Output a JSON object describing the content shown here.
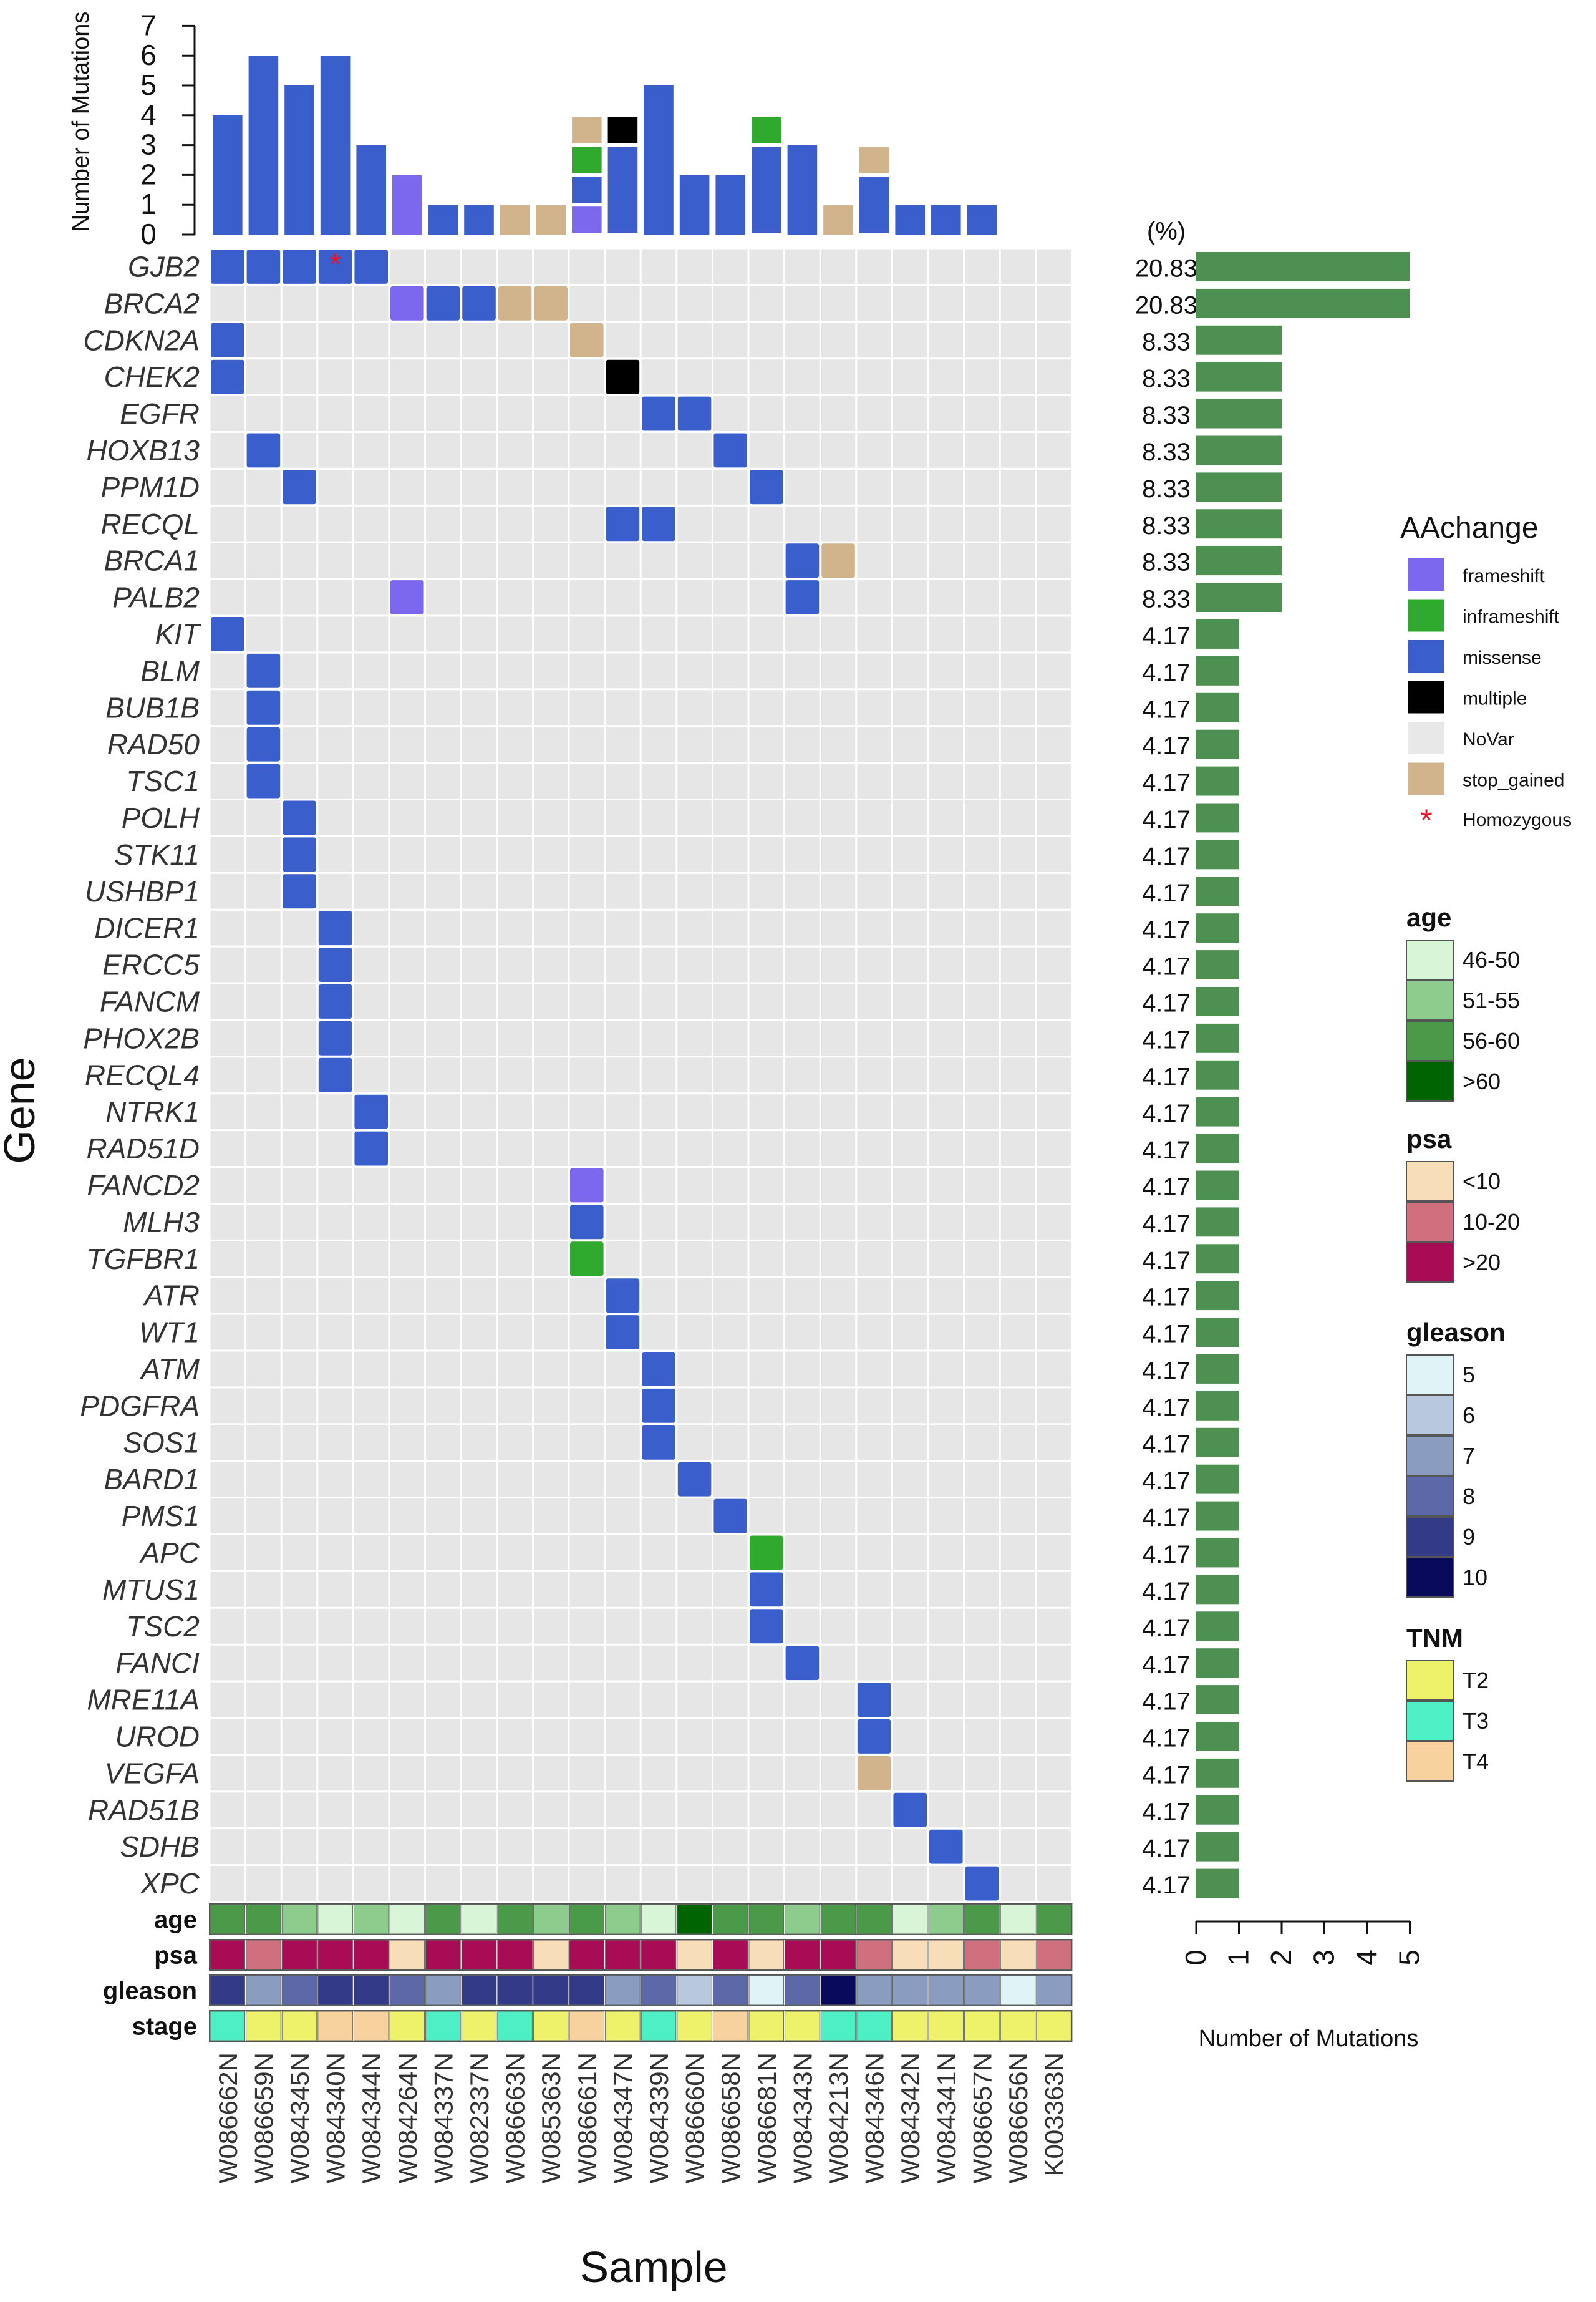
{
  "chart_data": {
    "type": "heatmap",
    "subtype": "oncoprint",
    "title": "",
    "xlabel": "Sample",
    "ylabel": "Gene",
    "top_barplot": {
      "ylabel": "Number of Mutations",
      "ylim": [
        0,
        7
      ],
      "ticks": [
        0,
        1,
        2,
        3,
        4,
        5,
        6,
        7
      ]
    },
    "right_barplot": {
      "xlabel": "Number of Mutations",
      "xlim": [
        0,
        5
      ],
      "ticks": [
        0,
        1,
        2,
        3,
        4,
        5
      ],
      "percent_header": "(%)"
    },
    "samples": [
      "W086662N",
      "W086659N",
      "W084345N",
      "W084340N",
      "W084344N",
      "W084264N",
      "W084337N",
      "W082337N",
      "W086663N",
      "W085363N",
      "W086661N",
      "W084347N",
      "W084339N",
      "W086660N",
      "W086658N",
      "W086681N",
      "W084343N",
      "W084213N",
      "W084346N",
      "W084342N",
      "W084341N",
      "W086657N",
      "W086656N",
      "K003363N"
    ],
    "sample_mutation_totals": [
      4,
      6,
      5,
      6,
      3,
      2,
      1,
      1,
      1,
      1,
      4,
      4,
      5,
      2,
      2,
      4,
      3,
      1,
      3,
      1,
      1,
      1,
      0,
      0
    ],
    "genes": [
      {
        "name": "GJB2",
        "pct": "20.83",
        "count": 5
      },
      {
        "name": "BRCA2",
        "pct": "20.83",
        "count": 5
      },
      {
        "name": "CDKN2A",
        "pct": "8.33",
        "count": 2
      },
      {
        "name": "CHEK2",
        "pct": "8.33",
        "count": 2
      },
      {
        "name": "EGFR",
        "pct": "8.33",
        "count": 2
      },
      {
        "name": "HOXB13",
        "pct": "8.33",
        "count": 2
      },
      {
        "name": "PPM1D",
        "pct": "8.33",
        "count": 2
      },
      {
        "name": "RECQL",
        "pct": "8.33",
        "count": 2
      },
      {
        "name": "BRCA1",
        "pct": "8.33",
        "count": 2
      },
      {
        "name": "PALB2",
        "pct": "8.33",
        "count": 2
      },
      {
        "name": "KIT",
        "pct": "4.17",
        "count": 1
      },
      {
        "name": "BLM",
        "pct": "4.17",
        "count": 1
      },
      {
        "name": "BUB1B",
        "pct": "4.17",
        "count": 1
      },
      {
        "name": "RAD50",
        "pct": "4.17",
        "count": 1
      },
      {
        "name": "TSC1",
        "pct": "4.17",
        "count": 1
      },
      {
        "name": "POLH",
        "pct": "4.17",
        "count": 1
      },
      {
        "name": "STK11",
        "pct": "4.17",
        "count": 1
      },
      {
        "name": "USHBP1",
        "pct": "4.17",
        "count": 1
      },
      {
        "name": "DICER1",
        "pct": "4.17",
        "count": 1
      },
      {
        "name": "ERCC5",
        "pct": "4.17",
        "count": 1
      },
      {
        "name": "FANCM",
        "pct": "4.17",
        "count": 1
      },
      {
        "name": "PHOX2B",
        "pct": "4.17",
        "count": 1
      },
      {
        "name": "RECQL4",
        "pct": "4.17",
        "count": 1
      },
      {
        "name": "NTRK1",
        "pct": "4.17",
        "count": 1
      },
      {
        "name": "RAD51D",
        "pct": "4.17",
        "count": 1
      },
      {
        "name": "FANCD2",
        "pct": "4.17",
        "count": 1
      },
      {
        "name": "MLH3",
        "pct": "4.17",
        "count": 1
      },
      {
        "name": "TGFBR1",
        "pct": "4.17",
        "count": 1
      },
      {
        "name": "ATR",
        "pct": "4.17",
        "count": 1
      },
      {
        "name": "WT1",
        "pct": "4.17",
        "count": 1
      },
      {
        "name": "ATM",
        "pct": "4.17",
        "count": 1
      },
      {
        "name": "PDGFRA",
        "pct": "4.17",
        "count": 1
      },
      {
        "name": "SOS1",
        "pct": "4.17",
        "count": 1
      },
      {
        "name": "BARD1",
        "pct": "4.17",
        "count": 1
      },
      {
        "name": "PMS1",
        "pct": "4.17",
        "count": 1
      },
      {
        "name": "APC",
        "pct": "4.17",
        "count": 1
      },
      {
        "name": "MTUS1",
        "pct": "4.17",
        "count": 1
      },
      {
        "name": "TSC2",
        "pct": "4.17",
        "count": 1
      },
      {
        "name": "FANCI",
        "pct": "4.17",
        "count": 1
      },
      {
        "name": "MRE11A",
        "pct": "4.17",
        "count": 1
      },
      {
        "name": "UROD",
        "pct": "4.17",
        "count": 1
      },
      {
        "name": "VEGFA",
        "pct": "4.17",
        "count": 1
      },
      {
        "name": "RAD51B",
        "pct": "4.17",
        "count": 1
      },
      {
        "name": "SDHB",
        "pct": "4.17",
        "count": 1
      },
      {
        "name": "XPC",
        "pct": "4.17",
        "count": 1
      }
    ],
    "mutations": [
      {
        "gene": "GJB2",
        "sample": "W086662N",
        "type": "missense"
      },
      {
        "gene": "GJB2",
        "sample": "W086659N",
        "type": "missense"
      },
      {
        "gene": "GJB2",
        "sample": "W084345N",
        "type": "missense"
      },
      {
        "gene": "GJB2",
        "sample": "W084340N",
        "type": "missense",
        "homozygous": true
      },
      {
        "gene": "GJB2",
        "sample": "W084344N",
        "type": "missense"
      },
      {
        "gene": "BRCA2",
        "sample": "W084264N",
        "type": "frameshift"
      },
      {
        "gene": "BRCA2",
        "sample": "W084337N",
        "type": "missense"
      },
      {
        "gene": "BRCA2",
        "sample": "W082337N",
        "type": "missense"
      },
      {
        "gene": "BRCA2",
        "sample": "W086663N",
        "type": "stop_gained"
      },
      {
        "gene": "BRCA2",
        "sample": "W085363N",
        "type": "stop_gained"
      },
      {
        "gene": "CDKN2A",
        "sample": "W086662N",
        "type": "missense"
      },
      {
        "gene": "CDKN2A",
        "sample": "W086661N",
        "type": "stop_gained"
      },
      {
        "gene": "CHEK2",
        "sample": "W086662N",
        "type": "missense"
      },
      {
        "gene": "CHEK2",
        "sample": "W084347N",
        "type": "multiple"
      },
      {
        "gene": "EGFR",
        "sample": "W084339N",
        "type": "missense"
      },
      {
        "gene": "EGFR",
        "sample": "W086660N",
        "type": "missense"
      },
      {
        "gene": "HOXB13",
        "sample": "W086659N",
        "type": "missense"
      },
      {
        "gene": "HOXB13",
        "sample": "W086658N",
        "type": "missense"
      },
      {
        "gene": "PPM1D",
        "sample": "W084345N",
        "type": "missense"
      },
      {
        "gene": "PPM1D",
        "sample": "W086681N",
        "type": "missense"
      },
      {
        "gene": "RECQL",
        "sample": "W084347N",
        "type": "missense"
      },
      {
        "gene": "RECQL",
        "sample": "W084339N",
        "type": "missense"
      },
      {
        "gene": "BRCA1",
        "sample": "W084343N",
        "type": "missense"
      },
      {
        "gene": "BRCA1",
        "sample": "W084213N",
        "type": "stop_gained"
      },
      {
        "gene": "PALB2",
        "sample": "W084264N",
        "type": "frameshift"
      },
      {
        "gene": "PALB2",
        "sample": "W084343N",
        "type": "missense"
      },
      {
        "gene": "KIT",
        "sample": "W086662N",
        "type": "missense"
      },
      {
        "gene": "BLM",
        "sample": "W086659N",
        "type": "missense"
      },
      {
        "gene": "BUB1B",
        "sample": "W086659N",
        "type": "missense"
      },
      {
        "gene": "RAD50",
        "sample": "W086659N",
        "type": "missense"
      },
      {
        "gene": "TSC1",
        "sample": "W086659N",
        "type": "missense"
      },
      {
        "gene": "POLH",
        "sample": "W084345N",
        "type": "missense"
      },
      {
        "gene": "STK11",
        "sample": "W084345N",
        "type": "missense"
      },
      {
        "gene": "USHBP1",
        "sample": "W084345N",
        "type": "missense"
      },
      {
        "gene": "DICER1",
        "sample": "W084340N",
        "type": "missense"
      },
      {
        "gene": "ERCC5",
        "sample": "W084340N",
        "type": "missense"
      },
      {
        "gene": "FANCM",
        "sample": "W084340N",
        "type": "missense"
      },
      {
        "gene": "PHOX2B",
        "sample": "W084340N",
        "type": "missense"
      },
      {
        "gene": "RECQL4",
        "sample": "W084340N",
        "type": "missense"
      },
      {
        "gene": "NTRK1",
        "sample": "W084344N",
        "type": "missense"
      },
      {
        "gene": "RAD51D",
        "sample": "W084344N",
        "type": "missense"
      },
      {
        "gene": "FANCD2",
        "sample": "W086661N",
        "type": "frameshift"
      },
      {
        "gene": "MLH3",
        "sample": "W086661N",
        "type": "missense"
      },
      {
        "gene": "TGFBR1",
        "sample": "W086661N",
        "type": "inframeshift"
      },
      {
        "gene": "ATR",
        "sample": "W084347N",
        "type": "missense"
      },
      {
        "gene": "WT1",
        "sample": "W084347N",
        "type": "missense"
      },
      {
        "gene": "ATM",
        "sample": "W084339N",
        "type": "missense"
      },
      {
        "gene": "PDGFRA",
        "sample": "W084339N",
        "type": "missense"
      },
      {
        "gene": "SOS1",
        "sample": "W084339N",
        "type": "missense"
      },
      {
        "gene": "BARD1",
        "sample": "W086660N",
        "type": "missense"
      },
      {
        "gene": "PMS1",
        "sample": "W086658N",
        "type": "missense"
      },
      {
        "gene": "APC",
        "sample": "W086681N",
        "type": "inframeshift"
      },
      {
        "gene": "MTUS1",
        "sample": "W086681N",
        "type": "missense"
      },
      {
        "gene": "TSC2",
        "sample": "W086681N",
        "type": "missense"
      },
      {
        "gene": "FANCI",
        "sample": "W084343N",
        "type": "missense"
      },
      {
        "gene": "MRE11A",
        "sample": "W084346N",
        "type": "missense"
      },
      {
        "gene": "UROD",
        "sample": "W084346N",
        "type": "missense"
      },
      {
        "gene": "VEGFA",
        "sample": "W084346N",
        "type": "stop_gained"
      },
      {
        "gene": "RAD51B",
        "sample": "W084342N",
        "type": "missense"
      },
      {
        "gene": "SDHB",
        "sample": "W084341N",
        "type": "missense"
      },
      {
        "gene": "XPC",
        "sample": "W086657N",
        "type": "missense"
      }
    ],
    "annotations": {
      "labels": [
        "age",
        "psa",
        "gleason",
        "stage"
      ],
      "age": [
        "56-60",
        "56-60",
        "51-55",
        "46-50",
        "51-55",
        "46-50",
        "56-60",
        "46-50",
        "56-60",
        "51-55",
        "56-60",
        "51-55",
        "46-50",
        ">60",
        "56-60",
        "56-60",
        "51-55",
        "56-60",
        "56-60",
        "46-50",
        "51-55",
        "56-60",
        "46-50",
        "56-60"
      ],
      "psa": [
        ">20",
        "10-20",
        ">20",
        ">20",
        ">20",
        "<10",
        ">20",
        ">20",
        ">20",
        "<10",
        ">20",
        ">20",
        ">20",
        "<10",
        ">20",
        "<10",
        ">20",
        ">20",
        "10-20",
        "<10",
        "<10",
        "10-20",
        "<10",
        "10-20"
      ],
      "gleason": [
        "9",
        "7",
        "8",
        "9",
        "9",
        "8",
        "7",
        "9",
        "9",
        "9",
        "9",
        "7",
        "8",
        "6",
        "8",
        "5",
        "8",
        "10",
        "7",
        "7",
        "7",
        "7",
        "5",
        "7"
      ],
      "stage": [
        "T3",
        "T2",
        "T2",
        "T4",
        "T4",
        "T2",
        "T3",
        "T2",
        "T3",
        "T2",
        "T4",
        "T2",
        "T3",
        "T2",
        "T4",
        "T2",
        "T2",
        "T3",
        "T3",
        "T2",
        "T2",
        "T2",
        "T2",
        "T2"
      ]
    },
    "legend": {
      "mutation_title": "AAchange",
      "mutation_types": [
        {
          "key": "frameshift",
          "label": "frameshift",
          "color": "#7B68EE"
        },
        {
          "key": "inframeshift",
          "label": "inframeshift",
          "color": "#2FAA2F"
        },
        {
          "key": "missense",
          "label": "missense",
          "color": "#3A5FCD"
        },
        {
          "key": "multiple",
          "label": "multiple",
          "color": "#000000"
        },
        {
          "key": "NoVar",
          "label": "NoVar",
          "color": "#E8E8E8"
        },
        {
          "key": "stop_gained",
          "label": "stop_gained",
          "color": "#D2B48C"
        }
      ],
      "homozygous": {
        "symbol": "*",
        "label": "Homozygous",
        "color": "#E8142C"
      },
      "groups": [
        {
          "key": "age",
          "title": "age",
          "items": [
            {
              "label": "46-50",
              "color": "#D8F5D8"
            },
            {
              "label": "51-55",
              "color": "#8DCC8D"
            },
            {
              "label": "56-60",
              "color": "#4A9A4A"
            },
            {
              "label": ">60",
              "color": "#006400"
            }
          ]
        },
        {
          "key": "psa",
          "title": "psa",
          "items": [
            {
              "label": "<10",
              "color": "#F8DEB8"
            },
            {
              "label": "10-20",
              "color": "#D0707E"
            },
            {
              "label": ">20",
              "color": "#A80C54"
            }
          ]
        },
        {
          "key": "gleason",
          "title": "gleason",
          "items": [
            {
              "label": "5",
              "color": "#E0F4F8"
            },
            {
              "label": "6",
              "color": "#B8C8DE"
            },
            {
              "label": "7",
              "color": "#8A9CC0"
            },
            {
              "label": "8",
              "color": "#5C68A8"
            },
            {
              "label": "9",
              "color": "#333A88"
            },
            {
              "label": "10",
              "color": "#0A0A5C"
            }
          ]
        },
        {
          "key": "stage",
          "title": "TNM",
          "items": [
            {
              "label": "T2",
              "color": "#EEF16A"
            },
            {
              "label": "T3",
              "color": "#4DF0C4"
            },
            {
              "label": "T4",
              "color": "#F8D29E"
            }
          ]
        }
      ]
    },
    "colors": {
      "right_bar": "#4E8F52",
      "cell_background": "#E6E6E6",
      "grid_line": "#FFFFFF"
    }
  }
}
